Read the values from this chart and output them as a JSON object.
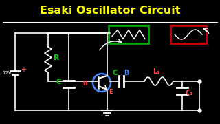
{
  "title": "Esaki Oscillator Circuit",
  "title_color": "#FFFF00",
  "bg_color": "#000000",
  "line_color": "#FFFFFF",
  "label_R": "R",
  "label_C": "C",
  "label_B": "B",
  "label_E": "E",
  "label_CB": "C",
  "label_L1": "L₁",
  "label_C1": "C₁",
  "label_12V": "12V",
  "label_plus": "+",
  "green_color": "#00CC00",
  "red_color": "#FF4444",
  "blue_color": "#4488FF",
  "lw": 1.2,
  "inductor_box_color": "#00AA00",
  "sine_box_color": "#CC0000"
}
